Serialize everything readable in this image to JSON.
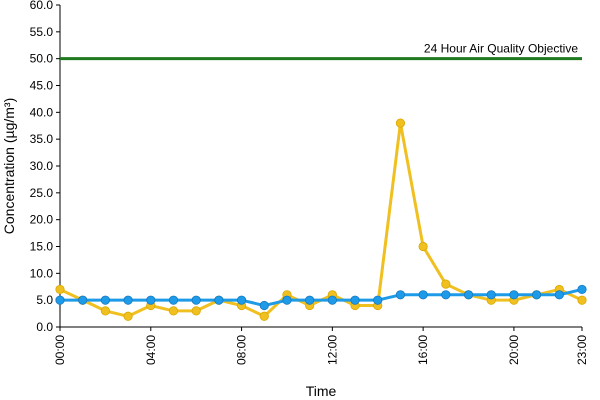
{
  "chart_data": {
    "type": "line",
    "xlabel": "Time",
    "ylabel": "Concentration (µg/m³)",
    "ylim": [
      0,
      60
    ],
    "yticks": [
      "0.0",
      "5.0",
      "10.0",
      "15.0",
      "20.0",
      "25.0",
      "30.0",
      "35.0",
      "40.0",
      "45.0",
      "50.0",
      "55.0",
      "60.0"
    ],
    "xlim": [
      0,
      23
    ],
    "xticks": [
      {
        "hour": 0,
        "label": "00:00"
      },
      {
        "hour": 4,
        "label": "04:00"
      },
      {
        "hour": 8,
        "label": "08:00"
      },
      {
        "hour": 12,
        "label": "12:00"
      },
      {
        "hour": 16,
        "label": "16:00"
      },
      {
        "hour": 20,
        "label": "20:00"
      },
      {
        "hour": 23,
        "label": "23:00"
      }
    ],
    "grid": false,
    "legend": "none",
    "x": [
      0,
      1,
      2,
      3,
      4,
      5,
      6,
      7,
      8,
      9,
      10,
      11,
      12,
      13,
      14,
      15,
      16,
      17,
      18,
      19,
      20,
      21,
      22,
      23
    ],
    "series": [
      {
        "color": "#f0c020",
        "values": [
          7,
          5,
          3,
          2,
          4,
          3,
          3,
          5,
          4,
          2,
          6,
          4,
          6,
          4,
          4,
          38,
          15,
          8,
          6,
          5,
          5,
          6,
          7,
          5
        ]
      },
      {
        "color": "#1e9be8",
        "values": [
          5,
          5,
          5,
          5,
          5,
          5,
          5,
          5,
          5,
          4,
          5,
          5,
          5,
          5,
          5,
          6,
          6,
          6,
          6,
          6,
          6,
          6,
          6,
          7
        ]
      }
    ],
    "reference_line": {
      "value": 50,
      "label": "24 Hour Air Quality Objective",
      "color": "#1f7a1f"
    }
  }
}
